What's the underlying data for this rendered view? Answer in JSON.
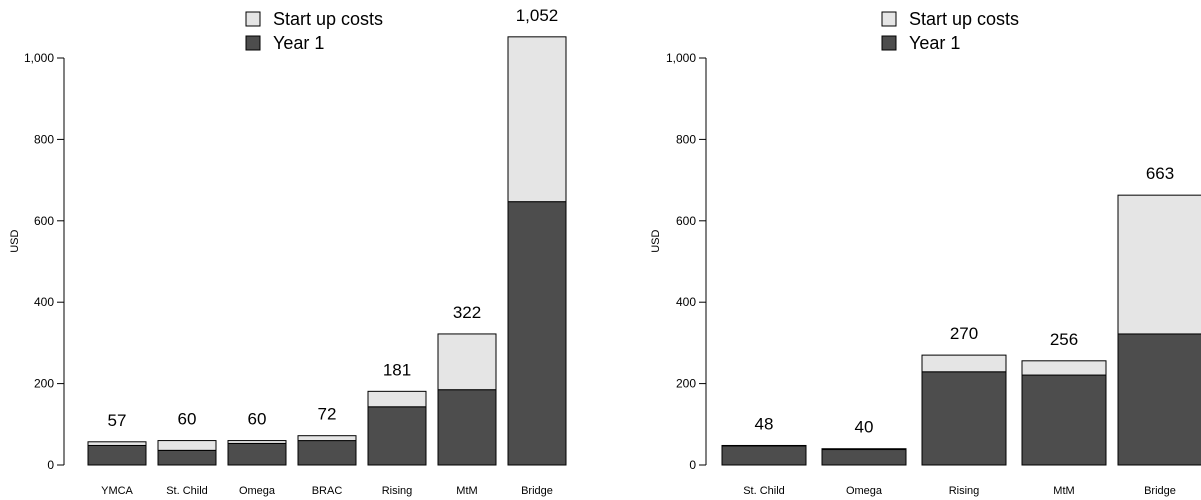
{
  "colors": {
    "start_up": "#e5e5e5",
    "year1": "#4d4d4d",
    "outline": "#000000"
  },
  "chart_data": [
    {
      "type": "bar",
      "stacked": true,
      "ylabel": "USD",
      "ylim": [
        0,
        1100
      ],
      "yticks": [
        0,
        200,
        400,
        600,
        800,
        1000
      ],
      "ytick_labels": [
        "0",
        "200",
        "400",
        "600",
        "800",
        "1,000"
      ],
      "legend": {
        "placement": "top-center",
        "entries": [
          "Start up costs",
          "Year 1"
        ]
      },
      "categories": [
        "YMCA",
        "St. Child",
        "Omega",
        "BRAC",
        "Rising",
        "MtM",
        "Bridge"
      ],
      "series": [
        {
          "name": "Year 1",
          "values": [
            48,
            36,
            53,
            60,
            143,
            185,
            647
          ]
        },
        {
          "name": "Start up costs",
          "values": [
            9,
            24,
            7,
            12,
            38,
            137,
            405
          ]
        }
      ],
      "totals": [
        57,
        60,
        60,
        72,
        181,
        322,
        1052
      ],
      "total_labels": [
        "57",
        "60",
        "60",
        "72",
        "181",
        "322",
        "1,052"
      ]
    },
    {
      "type": "bar",
      "stacked": true,
      "ylabel": "USD",
      "ylim": [
        0,
        1100
      ],
      "yticks": [
        0,
        200,
        400,
        600,
        800,
        1000
      ],
      "ytick_labels": [
        "0",
        "200",
        "400",
        "600",
        "800",
        "1,000"
      ],
      "legend": {
        "placement": "top-center",
        "entries": [
          "Start up costs",
          "Year 1"
        ]
      },
      "categories": [
        "St. Child",
        "Omega",
        "Rising",
        "MtM",
        "Bridge"
      ],
      "series": [
        {
          "name": "Year 1",
          "values": [
            47,
            38,
            229,
            221,
            322
          ]
        },
        {
          "name": "Start up costs",
          "values": [
            1,
            2,
            41,
            35,
            341
          ]
        }
      ],
      "totals": [
        48,
        40,
        270,
        256,
        663
      ],
      "total_labels": [
        "48",
        "40",
        "270",
        "256",
        "663"
      ]
    }
  ]
}
